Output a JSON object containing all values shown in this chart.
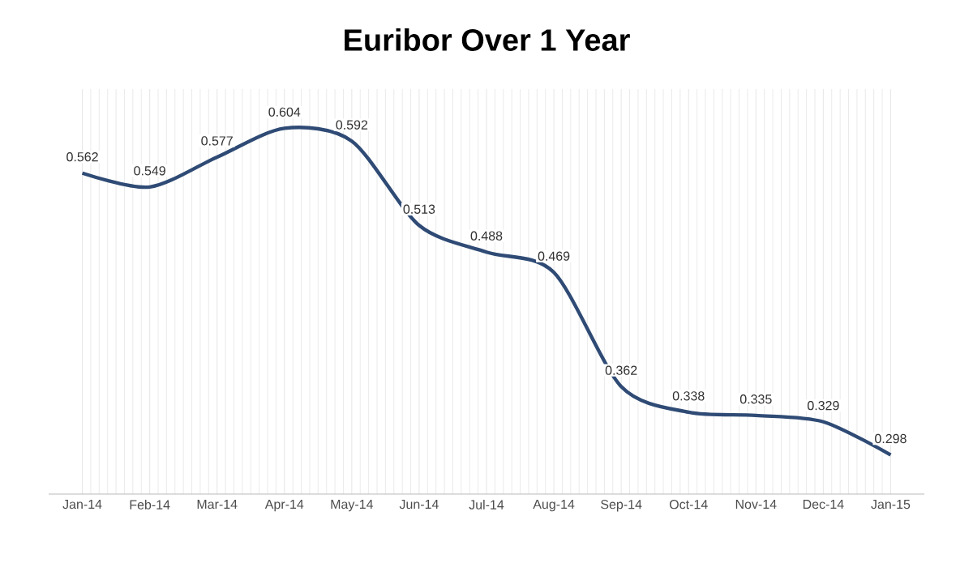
{
  "chart_data": {
    "type": "line",
    "title": "Euribor Over 1 Year",
    "categories": [
      "Jan-14",
      "Feb-14",
      "Mar-14",
      "Apr-14",
      "May-14",
      "Jun-14",
      "Jul-14",
      "Aug-14",
      "Sep-14",
      "Oct-14",
      "Nov-14",
      "Dec-14",
      "Jan-15"
    ],
    "series": [
      {
        "color": "#2f4b75",
        "values": [
          0.562,
          0.549,
          0.577,
          0.604,
          0.592,
          0.513,
          0.488,
          0.469,
          0.362,
          0.338,
          0.335,
          0.329,
          0.298
        ]
      }
    ],
    "data_labels": true,
    "grid": "x",
    "marker": "none",
    "line_style": "solid"
  }
}
